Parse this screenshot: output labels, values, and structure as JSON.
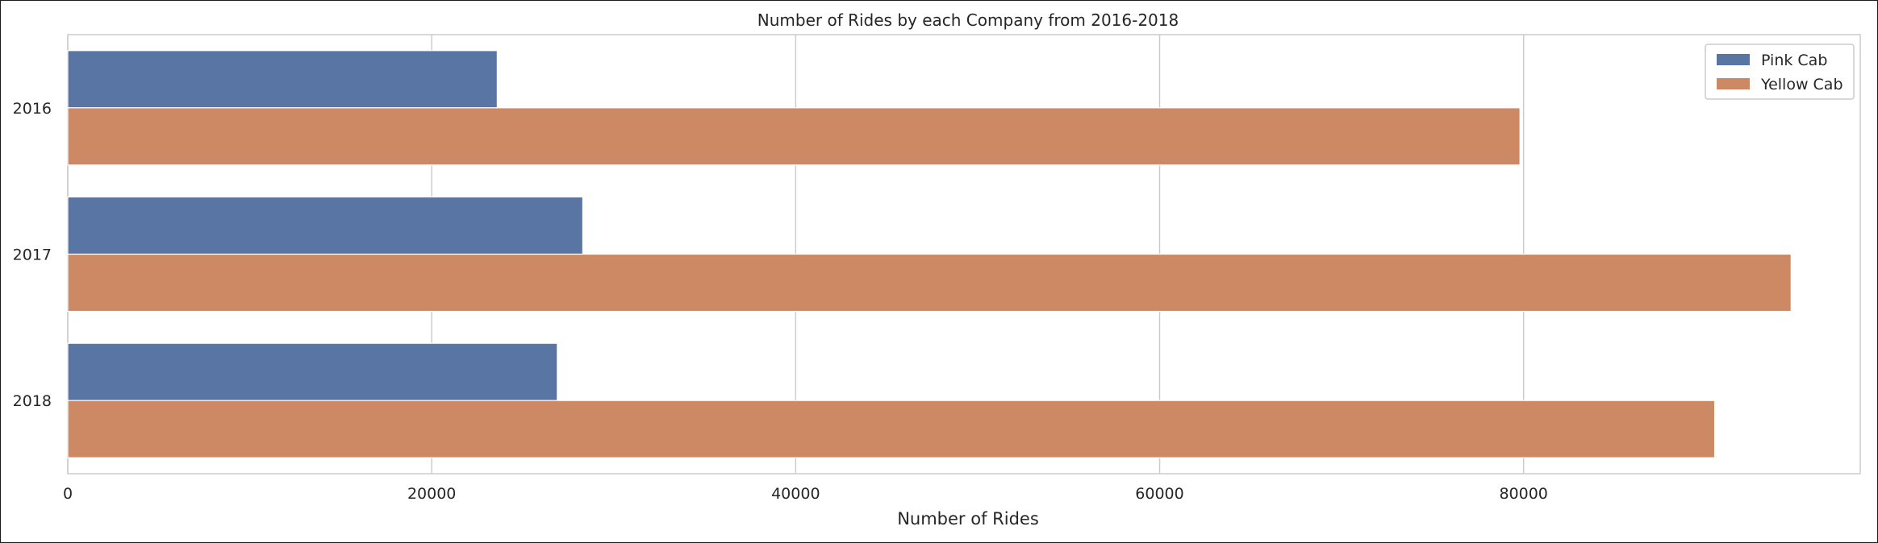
{
  "chart_data": {
    "type": "bar",
    "orientation": "horizontal",
    "title": "Number of Rides by each Company from 2016-2018",
    "xlabel": "Number of Rides",
    "ylabel": "",
    "categories": [
      "2016",
      "2017",
      "2018"
    ],
    "series": [
      {
        "name": "Pink Cab",
        "color": "#5875a4",
        "values": [
          23600,
          28300,
          26900
        ]
      },
      {
        "name": "Yellow Cab",
        "color": "#cc8963",
        "values": [
          79800,
          94700,
          90500
        ]
      }
    ],
    "xlim": [
      0,
      98500
    ],
    "xticks": [
      0,
      20000,
      40000,
      60000,
      80000
    ],
    "grid": true,
    "legend_position": "top-right"
  }
}
